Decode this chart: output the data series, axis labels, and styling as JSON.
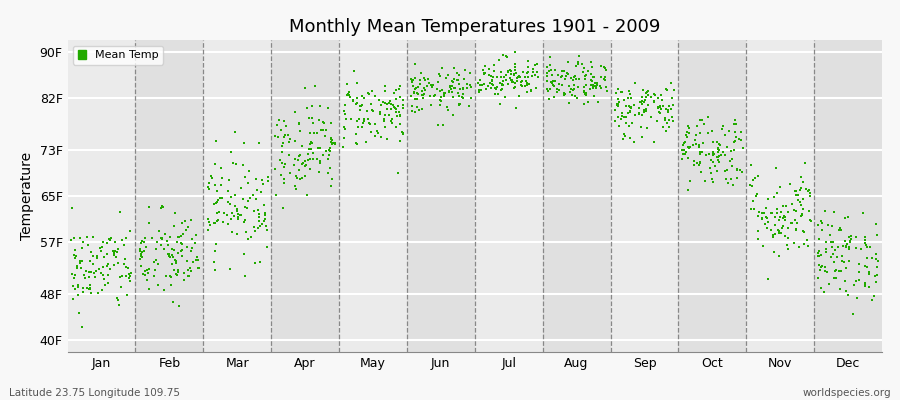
{
  "title": "Monthly Mean Temperatures 1901 - 2009",
  "ylabel": "Temperature",
  "xlabel_labels": [
    "Jan",
    "Feb",
    "Mar",
    "Apr",
    "May",
    "Jun",
    "Jul",
    "Aug",
    "Sep",
    "Oct",
    "Nov",
    "Dec"
  ],
  "ytick_labels": [
    "40F",
    "48F",
    "57F",
    "65F",
    "73F",
    "82F",
    "90F"
  ],
  "ytick_values": [
    40,
    48,
    57,
    65,
    73,
    82,
    90
  ],
  "ylim": [
    38,
    92
  ],
  "dot_color": "#22AA00",
  "dot_size": 3,
  "legend_label": "Mean Temp",
  "background_light": "#EBEBEB",
  "background_dark": "#E0E0E0",
  "grid_color": "#FFFFFF",
  "footnote_left": "Latitude 23.75 Longitude 109.75",
  "footnote_right": "worldspecies.org",
  "monthly_mean_F": [
    52.5,
    54.5,
    63.5,
    73.5,
    79.5,
    83.0,
    85.5,
    84.5,
    80.0,
    73.0,
    62.0,
    54.5
  ],
  "monthly_std_F": [
    3.8,
    4.0,
    4.5,
    4.0,
    3.0,
    2.0,
    1.8,
    1.8,
    2.5,
    3.2,
    4.0,
    3.8
  ],
  "n_years": 109,
  "seed": 42
}
